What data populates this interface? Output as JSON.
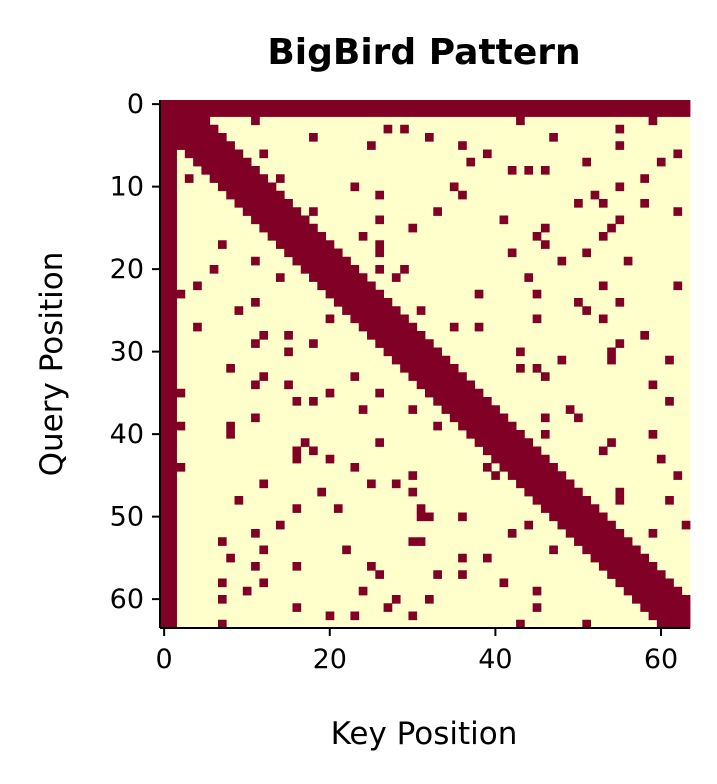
{
  "chart_data": {
    "type": "heatmap",
    "title": "BigBird Pattern",
    "xlabel": "Key Position",
    "ylabel": "Query Position",
    "size": 64,
    "pattern": {
      "global_tokens": [
        0,
        1
      ],
      "sliding_window_half_width": 3,
      "random_keys_per_query": 3,
      "random_seed": 7
    },
    "xticks": [
      0,
      20,
      40,
      60
    ],
    "yticks": [
      0,
      10,
      20,
      30,
      40,
      50,
      60
    ],
    "colors": {
      "attend": "#800026",
      "no_attend": "#ffffcc"
    },
    "legend": "none",
    "grid": false
  }
}
